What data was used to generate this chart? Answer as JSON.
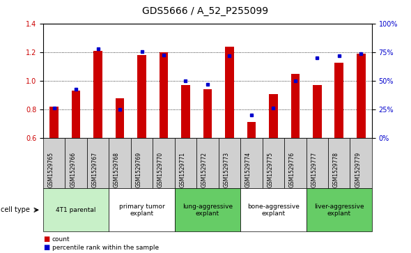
{
  "title": "GDS5666 / A_52_P255099",
  "samples": [
    "GSM1529765",
    "GSM1529766",
    "GSM1529767",
    "GSM1529768",
    "GSM1529769",
    "GSM1529770",
    "GSM1529771",
    "GSM1529772",
    "GSM1529773",
    "GSM1529774",
    "GSM1529775",
    "GSM1529776",
    "GSM1529777",
    "GSM1529778",
    "GSM1529779"
  ],
  "counts": [
    0.82,
    0.93,
    1.21,
    0.88,
    1.18,
    1.2,
    0.97,
    0.94,
    1.24,
    0.71,
    0.91,
    1.05,
    0.97,
    1.13,
    1.19
  ],
  "percentiles": [
    26,
    43,
    78,
    25,
    76,
    73,
    50,
    47,
    72,
    20,
    26,
    50,
    70,
    72,
    74
  ],
  "ylim": [
    0.6,
    1.4
  ],
  "y2lim": [
    0,
    100
  ],
  "yticks": [
    0.6,
    0.8,
    1.0,
    1.2,
    1.4
  ],
  "y2ticks": [
    0,
    25,
    50,
    75,
    100
  ],
  "y2ticklabels": [
    "0%",
    "25%",
    "50%",
    "75%",
    "100%"
  ],
  "cell_type_groups": [
    {
      "label": "4T1 parental",
      "start": 0,
      "end": 2,
      "color": "#c8f0c8"
    },
    {
      "label": "primary tumor\nexplant",
      "start": 3,
      "end": 5,
      "color": "#ffffff"
    },
    {
      "label": "lung-aggressive\nexplant",
      "start": 6,
      "end": 8,
      "color": "#66cc66"
    },
    {
      "label": "bone-aggressive\nexplant",
      "start": 9,
      "end": 11,
      "color": "#ffffff"
    },
    {
      "label": "liver-aggressive\nexplant",
      "start": 12,
      "end": 14,
      "color": "#66cc66"
    }
  ],
  "bar_color": "#cc0000",
  "percentile_color": "#0000cc",
  "bar_width": 0.4,
  "grid_yticks": [
    0.8,
    1.0,
    1.2
  ],
  "label_fontsize": 7,
  "tick_fontsize": 7,
  "title_fontsize": 10,
  "sample_label_fontsize": 5.5,
  "celltype_fontsize": 6.5,
  "legend_fontsize": 6.5
}
